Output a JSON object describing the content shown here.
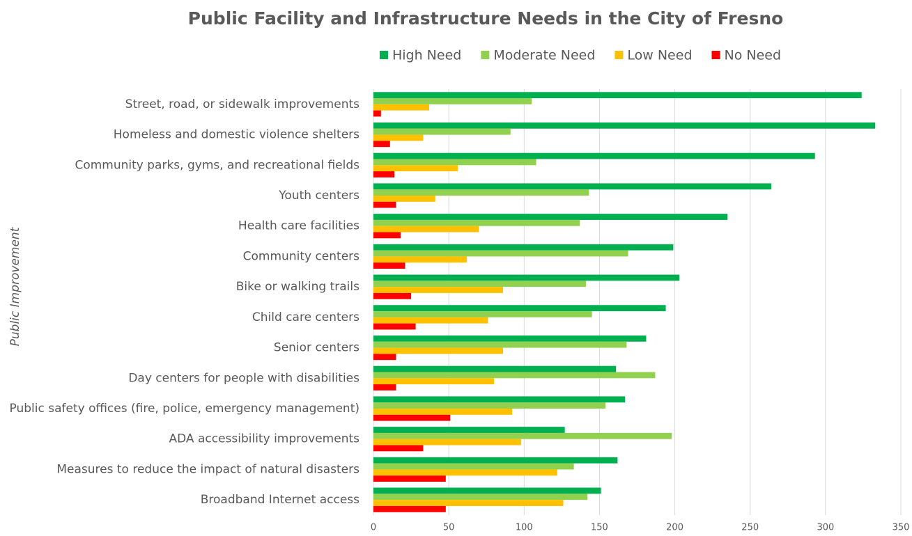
{
  "chart_data": {
    "type": "bar",
    "orientation": "horizontal",
    "title": "Public Facility and Infrastructure Needs in the City of Fresno",
    "y_label": "Public Improvement",
    "categories": [
      "Street, road, or sidewalk improvements",
      "Homeless and domestic violence shelters",
      "Community parks, gyms, and recreational fields",
      "Youth centers",
      "Health care facilities",
      "Community centers",
      "Bike or walking trails",
      "Child care centers",
      "Senior centers",
      "Day centers for people with disabilities",
      "Public safety offices (fire, police, emergency management)",
      "ADA accessibility improvements",
      "Measures to reduce the impact of natural disasters",
      "Broadband Internet access"
    ],
    "series": [
      {
        "name": "High Need",
        "color": "#00b050",
        "values": [
          324,
          333,
          293,
          264,
          235,
          199,
          203,
          194,
          181,
          161,
          167,
          127,
          162,
          151
        ]
      },
      {
        "name": "Moderate Need",
        "color": "#92d050",
        "values": [
          105,
          91,
          108,
          143,
          137,
          169,
          141,
          145,
          168,
          187,
          154,
          198,
          133,
          142
        ]
      },
      {
        "name": "Low Need",
        "color": "#ffc000",
        "values": [
          37,
          33,
          56,
          41,
          70,
          62,
          86,
          76,
          86,
          80,
          92,
          98,
          122,
          126
        ]
      },
      {
        "name": "No Need",
        "color": "#ff0000",
        "values": [
          5,
          11,
          14,
          15,
          18,
          21,
          25,
          28,
          15,
          15,
          51,
          33,
          48,
          48
        ]
      }
    ],
    "xlim": [
      0,
      350
    ],
    "xticks": [
      0,
      50,
      100,
      150,
      200,
      250,
      300,
      350
    ],
    "grid": true,
    "legend": "top"
  }
}
